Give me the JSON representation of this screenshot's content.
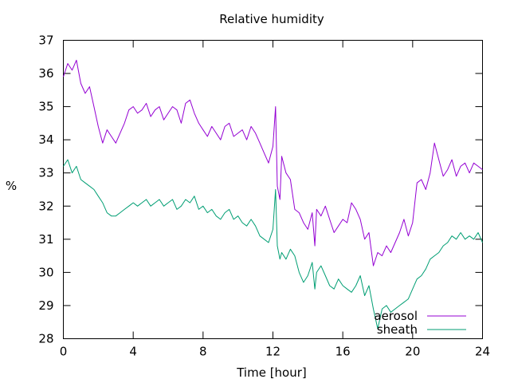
{
  "chart_data": {
    "type": "line",
    "title": "Relative humidity",
    "xlabel": "Time [hour]",
    "ylabel": "%",
    "xlim": [
      0,
      24
    ],
    "ylim": [
      28,
      37
    ],
    "x_ticks": [
      "0",
      "4",
      "8",
      "12",
      "16",
      "20",
      "24"
    ],
    "y_ticks": [
      "28",
      "29",
      "30",
      "31",
      "32",
      "33",
      "34",
      "35",
      "36",
      "37"
    ],
    "grid": false,
    "legend_position": "bottom-right",
    "series": [
      {
        "name": "aerosol",
        "color": "#9400d3",
        "x": [
          0,
          0.25,
          0.5,
          0.75,
          1.0,
          1.25,
          1.5,
          1.75,
          2.0,
          2.25,
          2.5,
          2.75,
          3.0,
          3.25,
          3.5,
          3.75,
          4.0,
          4.25,
          4.5,
          4.75,
          5.0,
          5.25,
          5.5,
          5.75,
          6.0,
          6.25,
          6.5,
          6.75,
          7.0,
          7.25,
          7.5,
          7.75,
          8.0,
          8.25,
          8.5,
          8.75,
          9.0,
          9.25,
          9.5,
          9.75,
          10.0,
          10.25,
          10.5,
          10.75,
          11.0,
          11.25,
          11.5,
          11.75,
          12.0,
          12.15,
          12.25,
          12.4,
          12.5,
          12.75,
          13.0,
          13.25,
          13.5,
          13.75,
          14.0,
          14.25,
          14.4,
          14.5,
          14.75,
          15.0,
          15.25,
          15.5,
          15.75,
          16.0,
          16.25,
          16.5,
          16.75,
          17.0,
          17.25,
          17.5,
          17.75,
          18.0,
          18.25,
          18.5,
          18.75,
          19.0,
          19.25,
          19.5,
          19.75,
          20.0,
          20.25,
          20.5,
          20.75,
          21.0,
          21.25,
          21.5,
          21.75,
          22.0,
          22.25,
          22.5,
          22.75,
          23.0,
          23.25,
          23.5,
          23.75,
          24.0
        ],
        "y": [
          35.9,
          36.3,
          36.1,
          36.4,
          35.7,
          35.4,
          35.6,
          35.0,
          34.4,
          33.9,
          34.3,
          34.1,
          33.9,
          34.2,
          34.5,
          34.9,
          35.0,
          34.8,
          34.9,
          35.1,
          34.7,
          34.9,
          35.0,
          34.6,
          34.8,
          35.0,
          34.9,
          34.5,
          35.1,
          35.2,
          34.8,
          34.5,
          34.3,
          34.1,
          34.4,
          34.2,
          34.0,
          34.4,
          34.5,
          34.1,
          34.2,
          34.3,
          34.0,
          34.4,
          34.2,
          33.9,
          33.6,
          33.3,
          33.8,
          35.0,
          32.6,
          32.2,
          33.5,
          33.0,
          32.8,
          31.9,
          31.8,
          31.5,
          31.3,
          31.8,
          30.8,
          31.9,
          31.7,
          32.0,
          31.6,
          31.2,
          31.4,
          31.6,
          31.5,
          32.1,
          31.9,
          31.6,
          31.0,
          31.2,
          30.2,
          30.6,
          30.5,
          30.8,
          30.6,
          30.9,
          31.2,
          31.6,
          31.1,
          31.5,
          32.7,
          32.8,
          32.5,
          33.0,
          33.9,
          33.4,
          32.9,
          33.1,
          33.4,
          32.9,
          33.2,
          33.3,
          33.0,
          33.3,
          33.2,
          33.1
        ]
      },
      {
        "name": "sheath",
        "color": "#009e73",
        "x": [
          0,
          0.25,
          0.5,
          0.75,
          1.0,
          1.25,
          1.5,
          1.75,
          2.0,
          2.25,
          2.5,
          2.75,
          3.0,
          3.25,
          3.5,
          3.75,
          4.0,
          4.25,
          4.5,
          4.75,
          5.0,
          5.25,
          5.5,
          5.75,
          6.0,
          6.25,
          6.5,
          6.75,
          7.0,
          7.25,
          7.5,
          7.75,
          8.0,
          8.25,
          8.5,
          8.75,
          9.0,
          9.25,
          9.5,
          9.75,
          10.0,
          10.25,
          10.5,
          10.75,
          11.0,
          11.25,
          11.5,
          11.75,
          12.0,
          12.15,
          12.25,
          12.4,
          12.5,
          12.75,
          13.0,
          13.25,
          13.5,
          13.75,
          14.0,
          14.25,
          14.4,
          14.5,
          14.75,
          15.0,
          15.25,
          15.5,
          15.75,
          16.0,
          16.25,
          16.5,
          16.75,
          17.0,
          17.25,
          17.5,
          17.75,
          18.0,
          18.25,
          18.5,
          18.75,
          19.0,
          19.25,
          19.5,
          19.75,
          20.0,
          20.25,
          20.5,
          20.75,
          21.0,
          21.25,
          21.5,
          21.75,
          22.0,
          22.25,
          22.5,
          22.75,
          23.0,
          23.25,
          23.5,
          23.75,
          24.0
        ],
        "y": [
          33.2,
          33.4,
          33.0,
          33.2,
          32.8,
          32.7,
          32.6,
          32.5,
          32.3,
          32.1,
          31.8,
          31.7,
          31.7,
          31.8,
          31.9,
          32.0,
          32.1,
          32.0,
          32.1,
          32.2,
          32.0,
          32.1,
          32.2,
          32.0,
          32.1,
          32.2,
          31.9,
          32.0,
          32.2,
          32.1,
          32.3,
          31.9,
          32.0,
          31.8,
          31.9,
          31.7,
          31.6,
          31.8,
          31.9,
          31.6,
          31.7,
          31.5,
          31.4,
          31.6,
          31.4,
          31.1,
          31.0,
          30.9,
          31.3,
          32.5,
          30.8,
          30.4,
          30.6,
          30.4,
          30.7,
          30.5,
          30.0,
          29.7,
          29.9,
          30.3,
          29.5,
          30.0,
          30.2,
          29.9,
          29.6,
          29.5,
          29.8,
          29.6,
          29.5,
          29.4,
          29.6,
          29.9,
          29.3,
          29.6,
          28.9,
          28.3,
          28.9,
          29.0,
          28.8,
          28.9,
          29.0,
          29.1,
          29.2,
          29.5,
          29.8,
          29.9,
          30.1,
          30.4,
          30.5,
          30.6,
          30.8,
          30.9,
          31.1,
          31.0,
          31.2,
          31.0,
          31.1,
          31.0,
          31.2,
          30.9
        ]
      }
    ]
  }
}
